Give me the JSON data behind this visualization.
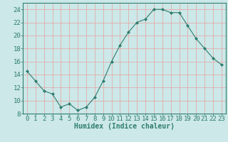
{
  "x": [
    0,
    1,
    2,
    3,
    4,
    5,
    6,
    7,
    8,
    9,
    10,
    11,
    12,
    13,
    14,
    15,
    16,
    17,
    18,
    19,
    20,
    21,
    22,
    23
  ],
  "y": [
    14.5,
    13.0,
    11.5,
    11.0,
    9.0,
    9.5,
    8.5,
    9.0,
    10.5,
    13.0,
    16.0,
    18.5,
    20.5,
    22.0,
    22.5,
    24.0,
    24.0,
    23.5,
    23.5,
    21.5,
    19.5,
    18.0,
    16.5,
    15.5
  ],
  "xlabel": "Humidex (Indice chaleur)",
  "ylim": [
    8,
    25
  ],
  "xlim": [
    -0.5,
    23.5
  ],
  "yticks": [
    8,
    10,
    12,
    14,
    16,
    18,
    20,
    22,
    24
  ],
  "xticks": [
    0,
    1,
    2,
    3,
    4,
    5,
    6,
    7,
    8,
    9,
    10,
    11,
    12,
    13,
    14,
    15,
    16,
    17,
    18,
    19,
    20,
    21,
    22,
    23
  ],
  "line_color": "#2e7d6e",
  "marker_color": "#2e7d6e",
  "bg_color": "#cce8e8",
  "grid_color": "#e8a0a0",
  "axes_color": "#2e7d6e",
  "label_fontsize": 7,
  "tick_fontsize": 6.5
}
